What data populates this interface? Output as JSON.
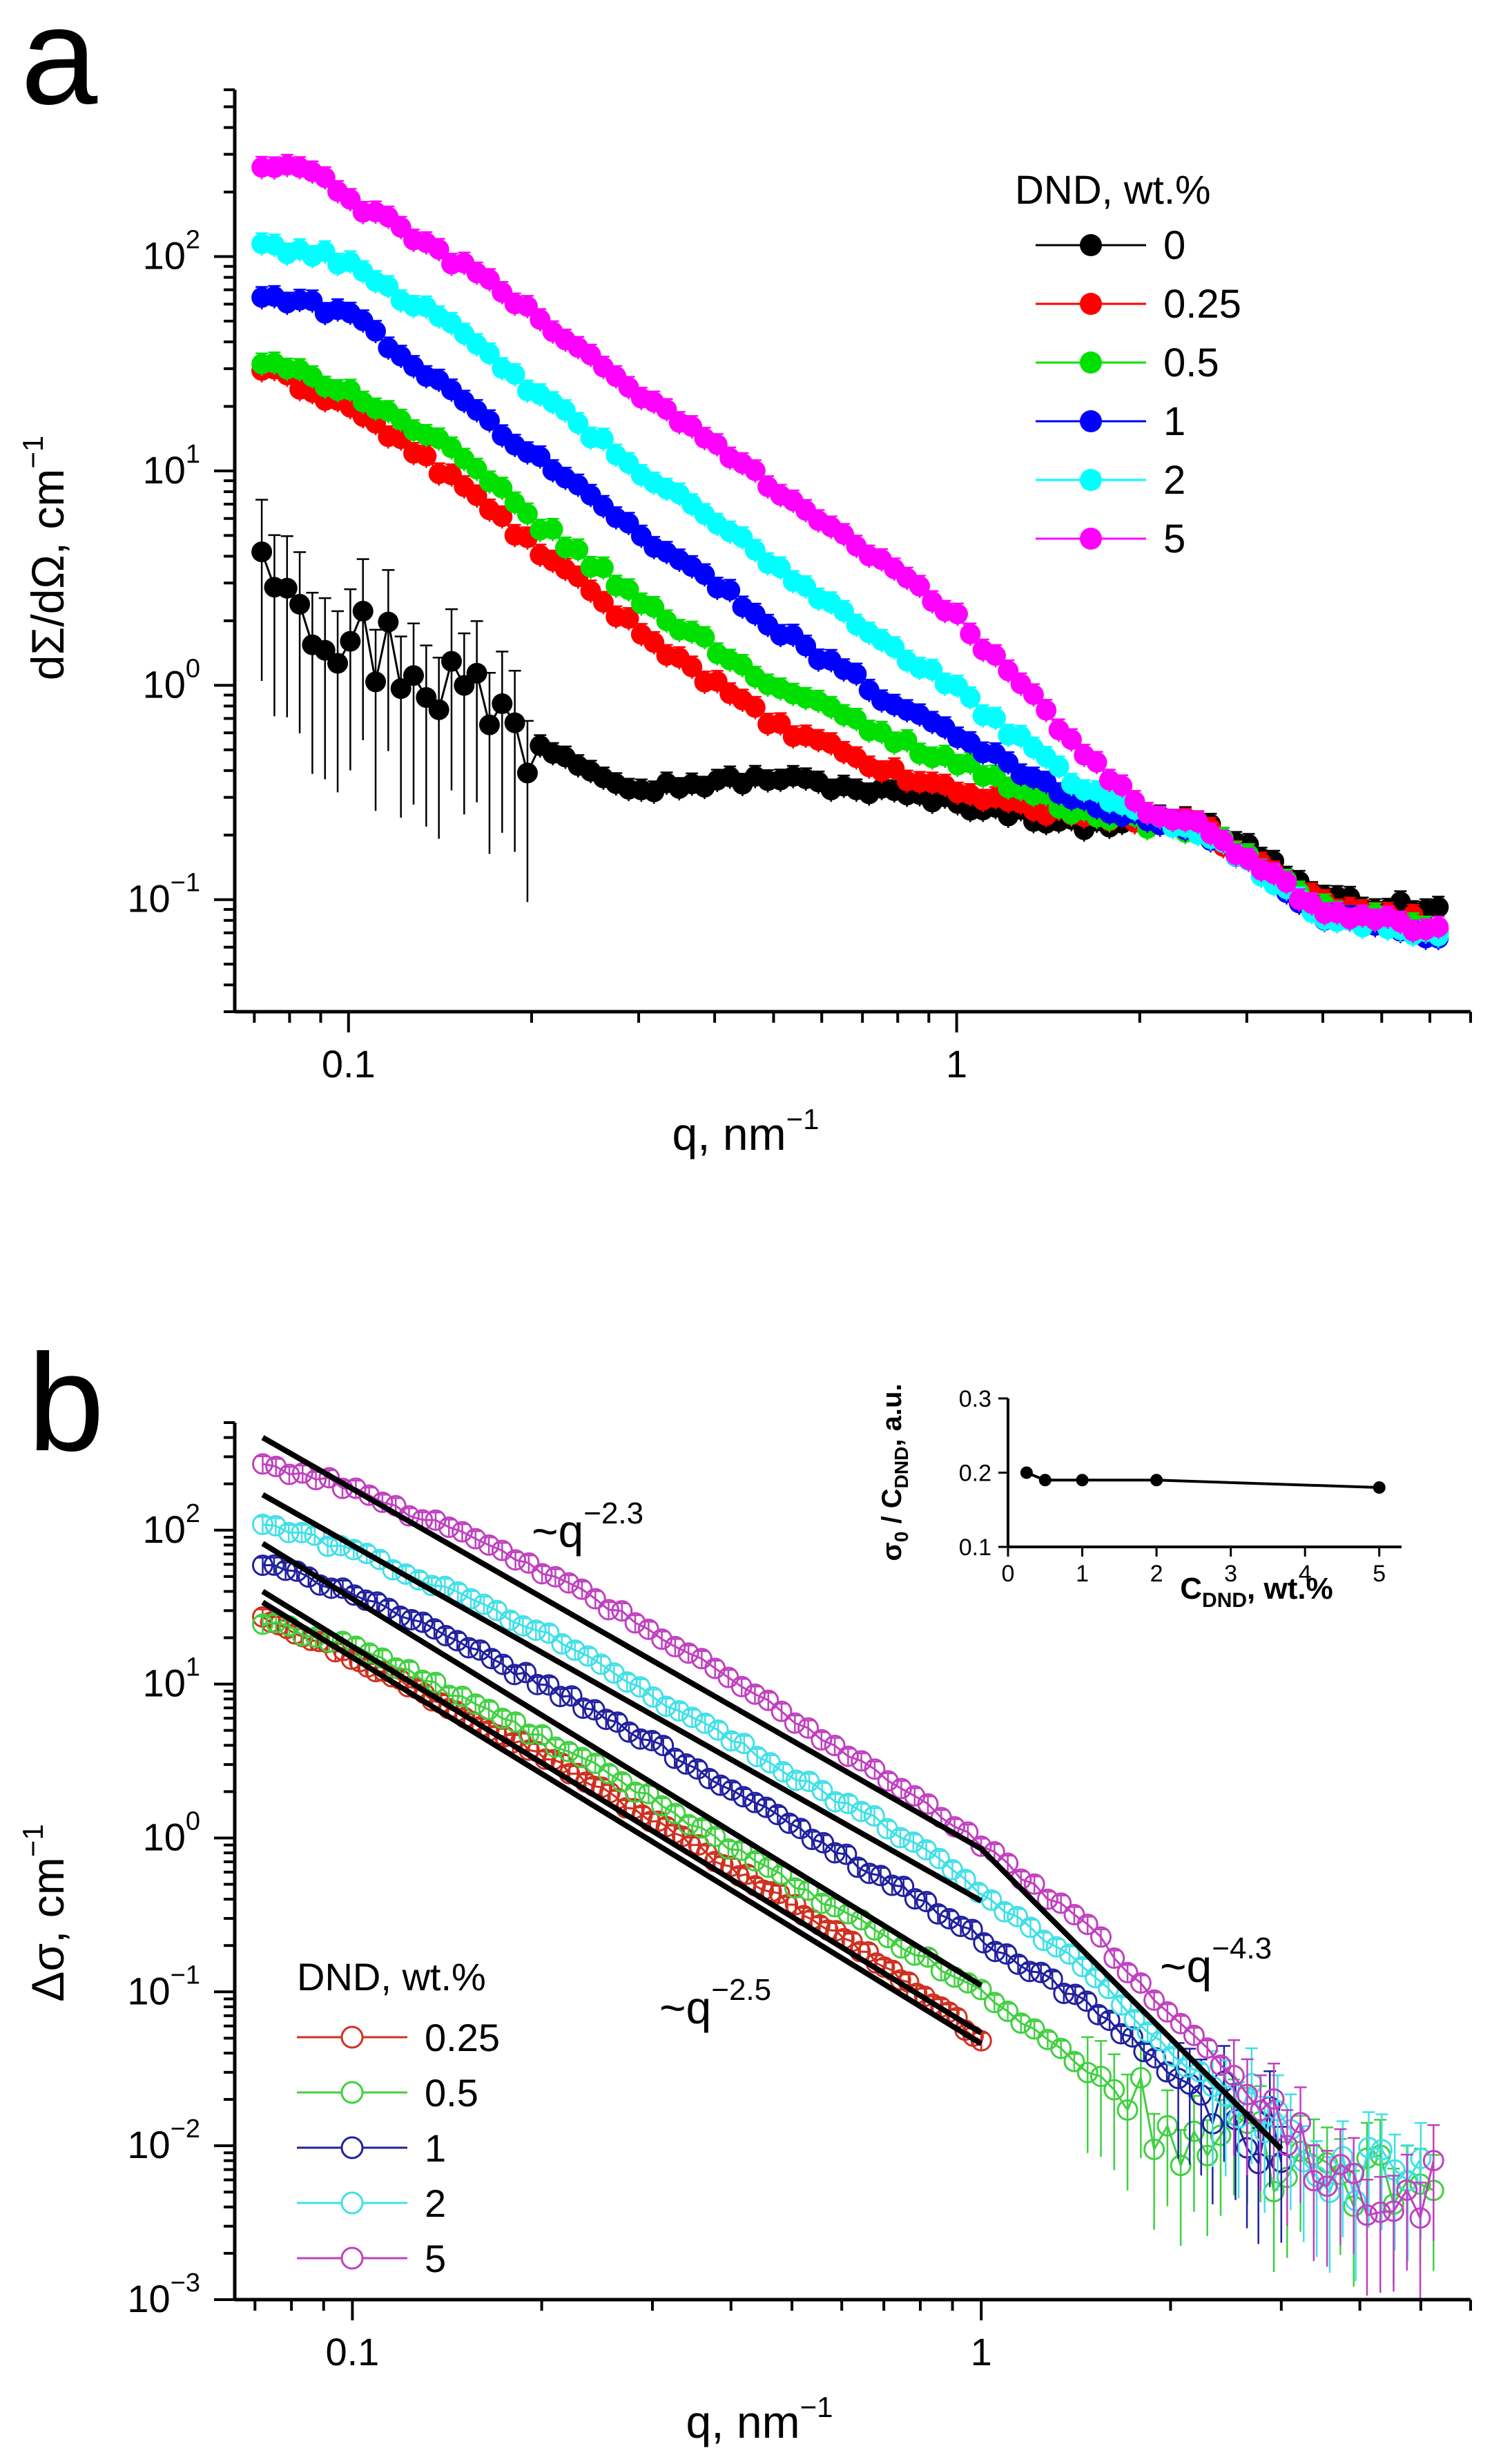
{
  "chart_data": [
    {
      "panel_label": "a",
      "type": "scatter",
      "xscale": "log",
      "yscale": "log",
      "xlabel": "q, nm",
      "xlabel_sup": "−1",
      "ylabel": "dΣ/dΩ, cm",
      "ylabel_sup": "−1",
      "xlim": [
        0.065,
        7.0
      ],
      "ylim": [
        0.03,
        600
      ],
      "xticks": [
        {
          "v": 0.1,
          "label": "0.1"
        },
        {
          "v": 1,
          "label": "1"
        }
      ],
      "yticks": [
        {
          "v": 0.1,
          "base": "10",
          "exp": "−1"
        },
        {
          "v": 1,
          "base": "10",
          "exp": "0"
        },
        {
          "v": 10,
          "base": "10",
          "exp": "1"
        },
        {
          "v": 100,
          "base": "10",
          "exp": "2"
        }
      ],
      "legend_title": "DND, wt.%",
      "legend_position": "top-right",
      "series": [
        {
          "name": "0",
          "color": "#000000",
          "anchors": [
            [
              0.072,
              5.3
            ],
            [
              0.08,
              3.6
            ],
            [
              0.09,
              2.2
            ],
            [
              0.1,
              1.6
            ],
            [
              0.12,
              1.4
            ],
            [
              0.15,
              1.0
            ],
            [
              0.2,
              0.55
            ],
            [
              0.3,
              0.33
            ],
            [
              0.5,
              0.37
            ],
            [
              0.8,
              0.31
            ],
            [
              1.2,
              0.26
            ],
            [
              1.6,
              0.22
            ],
            [
              2.0,
              0.24
            ],
            [
              2.5,
              0.23
            ],
            [
              3.0,
              0.18
            ],
            [
              4.0,
              0.1
            ],
            [
              6.5,
              0.088
            ]
          ]
        },
        {
          "name": "0.25",
          "color": "#ff0000",
          "anchors": [
            [
              0.072,
              30
            ],
            [
              0.1,
              20
            ],
            [
              0.15,
              9
            ],
            [
              0.2,
              4.5
            ],
            [
              0.3,
              1.8
            ],
            [
              0.5,
              0.65
            ],
            [
              0.8,
              0.38
            ],
            [
              1.0,
              0.32
            ],
            [
              1.5,
              0.25
            ],
            [
              2.0,
              0.24
            ],
            [
              2.5,
              0.22
            ],
            [
              3.0,
              0.16
            ],
            [
              4.0,
              0.095
            ],
            [
              6.5,
              0.075
            ]
          ]
        },
        {
          "name": "0.5",
          "color": "#00e000",
          "anchors": [
            [
              0.072,
              32
            ],
            [
              0.1,
              24
            ],
            [
              0.15,
              12
            ],
            [
              0.2,
              6
            ],
            [
              0.3,
              2.5
            ],
            [
              0.5,
              1.0
            ],
            [
              0.8,
              0.55
            ],
            [
              1.0,
              0.44
            ],
            [
              1.5,
              0.27
            ],
            [
              2.0,
              0.23
            ],
            [
              2.5,
              0.21
            ],
            [
              3.0,
              0.16
            ],
            [
              4.0,
              0.09
            ],
            [
              6.5,
              0.07
            ]
          ]
        },
        {
          "name": "1",
          "color": "#0000ff",
          "anchors": [
            [
              0.072,
              65
            ],
            [
              0.1,
              55
            ],
            [
              0.15,
              22
            ],
            [
              0.2,
              12
            ],
            [
              0.3,
              5.2
            ],
            [
              0.5,
              1.9
            ],
            [
              0.8,
              0.8
            ],
            [
              1.0,
              0.6
            ],
            [
              1.5,
              0.3
            ],
            [
              2.0,
              0.24
            ],
            [
              2.5,
              0.21
            ],
            [
              3.0,
              0.15
            ],
            [
              4.0,
              0.085
            ],
            [
              6.5,
              0.065
            ]
          ]
        },
        {
          "name": "2",
          "color": "#00ffff",
          "anchors": [
            [
              0.072,
              115
            ],
            [
              0.1,
              95
            ],
            [
              0.15,
              45
            ],
            [
              0.2,
              24
            ],
            [
              0.3,
              10
            ],
            [
              0.5,
              3.7
            ],
            [
              0.8,
              1.45
            ],
            [
              1.0,
              0.95
            ],
            [
              1.5,
              0.38
            ],
            [
              2.0,
              0.25
            ],
            [
              2.5,
              0.21
            ],
            [
              3.0,
              0.15
            ],
            [
              4.0,
              0.085
            ],
            [
              6.5,
              0.065
            ]
          ]
        },
        {
          "name": "5",
          "color": "#ff00ff",
          "anchors": [
            [
              0.072,
              260
            ],
            [
              0.085,
              260
            ],
            [
              0.1,
              185
            ],
            [
              0.15,
              95
            ],
            [
              0.2,
              55
            ],
            [
              0.3,
              23
            ],
            [
              0.5,
              8.5
            ],
            [
              0.8,
              3.3
            ],
            [
              1.0,
              2.1
            ],
            [
              1.5,
              0.6
            ],
            [
              2.0,
              0.27
            ],
            [
              2.5,
              0.22
            ],
            [
              3.0,
              0.15
            ],
            [
              4.0,
              0.09
            ],
            [
              6.5,
              0.07
            ]
          ]
        }
      ]
    },
    {
      "panel_label": "b",
      "type": "scatter",
      "xscale": "log",
      "yscale": "log",
      "xlabel": "q, nm",
      "xlabel_sup": "−1",
      "ylabel": "Δσ, cm",
      "ylabel_sup": "−1",
      "xlim": [
        0.065,
        6.0
      ],
      "ylim": [
        0.001,
        500
      ],
      "xticks": [
        {
          "v": 0.1,
          "label": "0.1"
        },
        {
          "v": 1,
          "label": "1"
        }
      ],
      "yticks": [
        {
          "v": 0.001,
          "base": "10",
          "exp": "−3"
        },
        {
          "v": 0.01,
          "base": "10",
          "exp": "−2"
        },
        {
          "v": 0.1,
          "base": "10",
          "exp": "−1"
        },
        {
          "v": 1,
          "base": "10",
          "exp": "0"
        },
        {
          "v": 10,
          "base": "10",
          "exp": "1"
        },
        {
          "v": 100,
          "base": "10",
          "exp": "2"
        }
      ],
      "legend_title": "DND, wt.%",
      "legend_position": "bottom-left",
      "series": [
        {
          "name": "0.25",
          "color": "#d03020",
          "anchors": [
            [
              0.072,
              28
            ],
            [
              0.1,
              15
            ],
            [
              0.2,
              3.5
            ],
            [
              0.3,
              1.3
            ],
            [
              0.5,
              0.37
            ],
            [
              0.7,
              0.15
            ],
            [
              0.85,
              0.08
            ],
            [
              1.0,
              0.05
            ]
          ]
        },
        {
          "name": "0.5",
          "color": "#40d040",
          "anchors": [
            [
              0.072,
              25
            ],
            [
              0.1,
              18
            ],
            [
              0.2,
              4.5
            ],
            [
              0.3,
              1.8
            ],
            [
              0.5,
              0.5
            ],
            [
              0.8,
              0.17
            ],
            [
              1.0,
              0.1
            ],
            [
              1.5,
              0.03
            ],
            [
              2.0,
              0.012
            ],
            [
              3.0,
              0.008
            ],
            [
              4.0,
              0.006
            ],
            [
              5.5,
              0.005
            ]
          ]
        },
        {
          "name": "1",
          "color": "#2020a0",
          "anchors": [
            [
              0.072,
              60
            ],
            [
              0.1,
              40
            ],
            [
              0.2,
              10
            ],
            [
              0.3,
              4.2
            ],
            [
              0.5,
              1.2
            ],
            [
              0.8,
              0.4
            ],
            [
              1.0,
              0.22
            ],
            [
              1.5,
              0.08
            ],
            [
              2.0,
              0.03
            ],
            [
              2.5,
              0.015
            ],
            [
              3.0,
              0.01
            ]
          ]
        },
        {
          "name": "2",
          "color": "#40e0e8",
          "anchors": [
            [
              0.072,
              110
            ],
            [
              0.1,
              75
            ],
            [
              0.2,
              22
            ],
            [
              0.3,
              8.5
            ],
            [
              0.5,
              2.6
            ],
            [
              0.8,
              0.9
            ],
            [
              1.0,
              0.45
            ],
            [
              1.5,
              0.13
            ],
            [
              2.0,
              0.04
            ],
            [
              2.5,
              0.02
            ],
            [
              3.5,
              0.008
            ],
            [
              5.0,
              0.006
            ]
          ]
        },
        {
          "name": "5",
          "color": "#c040c0",
          "anchors": [
            [
              0.072,
              270
            ],
            [
              0.1,
              190
            ],
            [
              0.2,
              55
            ],
            [
              0.3,
              22
            ],
            [
              0.5,
              6
            ],
            [
              0.8,
              1.8
            ],
            [
              1.0,
              0.9
            ],
            [
              1.5,
              0.25
            ],
            [
              2.0,
              0.07
            ],
            [
              2.5,
              0.03
            ],
            [
              3.0,
              0.012
            ],
            [
              4.0,
              0.006
            ],
            [
              5.5,
              0.005
            ]
          ]
        }
      ],
      "fit_lines": [
        {
          "points": [
            [
              0.072,
              400
            ],
            [
              1.0,
              0.85
            ],
            [
              3.0,
              0.0095
            ]
          ]
        },
        {
          "points": [
            [
              0.072,
              170
            ],
            [
              1.0,
              0.39
            ]
          ]
        },
        {
          "points": [
            [
              0.072,
              82
            ],
            [
              1.0,
              0.11
            ]
          ]
        },
        {
          "points": [
            [
              0.072,
              40
            ],
            [
              1.0,
              0.054
            ]
          ]
        },
        {
          "points": [
            [
              0.072,
              34
            ],
            [
              1.0,
              0.046
            ]
          ]
        }
      ],
      "annotations": [
        {
          "base": "~q",
          "exp": "−2.3"
        },
        {
          "base": "~q",
          "exp": "−2.5"
        },
        {
          "base": "~q",
          "exp": "−4.3"
        }
      ],
      "inset": {
        "type": "line",
        "xlabel": "C",
        "xlabel_sub": "DND",
        "xlabel_suffix": ", wt.%",
        "ylabel_prefix": "σ",
        "ylabel_prefix_sub": "0",
        "ylabel_mid": " / C",
        "ylabel_mid_sub": "DND",
        "ylabel_suffix": ", a.u.",
        "xlim": [
          0,
          5.3
        ],
        "ylim": [
          0.1,
          0.3
        ],
        "xticks": [
          "0",
          "1",
          "2",
          "3",
          "4",
          "5"
        ],
        "yticks": [
          "0.1",
          "0.2",
          "0.3"
        ],
        "x": [
          0.25,
          0.5,
          1,
          2,
          5
        ],
        "y": [
          0.2,
          0.19,
          0.19,
          0.19,
          0.18
        ]
      }
    }
  ]
}
